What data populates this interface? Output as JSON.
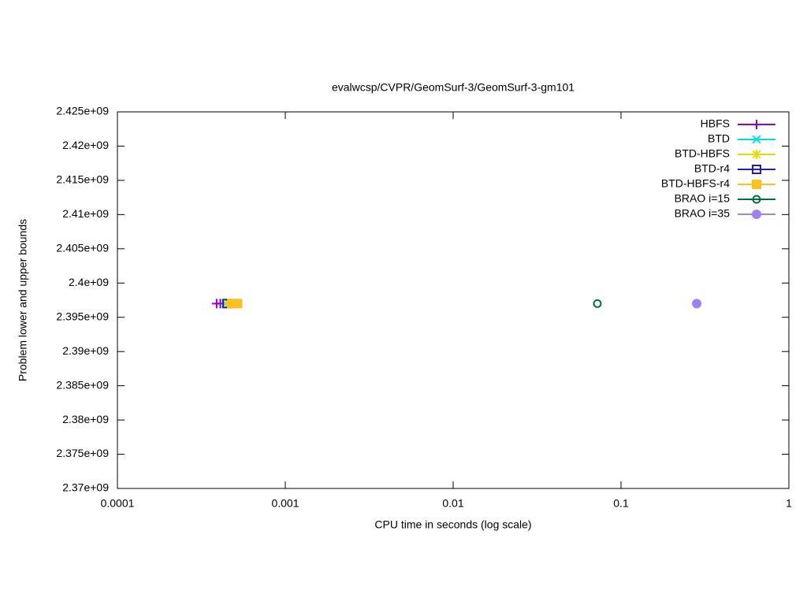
{
  "chart_data": {
    "type": "scatter",
    "title": "evalwcsp/CVPR/GeomSurf-3/GeomSurf-3-gm101",
    "x_label": "CPU time in seconds (log scale)",
    "y_label": "Problem lower and upper bounds",
    "x_scale": "log",
    "xlim": [
      0.0001,
      1
    ],
    "xticks": [
      0.0001,
      0.001,
      0.01,
      0.1,
      1
    ],
    "ylim": [
      2370000000,
      2425000000
    ],
    "yticks": [
      {
        "value": 2370000000,
        "label": "2.37e+09"
      },
      {
        "value": 2375000000,
        "label": "2.375e+09"
      },
      {
        "value": 2380000000,
        "label": "2.38e+09"
      },
      {
        "value": 2385000000,
        "label": "2.385e+09"
      },
      {
        "value": 2390000000,
        "label": "2.39e+09"
      },
      {
        "value": 2395000000,
        "label": "2.395e+09"
      },
      {
        "value": 2400000000,
        "label": "2.4e+09"
      },
      {
        "value": 2405000000,
        "label": "2.405e+09"
      },
      {
        "value": 2410000000,
        "label": "2.41e+09"
      },
      {
        "value": 2415000000,
        "label": "2.415e+09"
      },
      {
        "value": 2420000000,
        "label": "2.42e+09"
      },
      {
        "value": 2425000000,
        "label": "2.425e+09"
      }
    ],
    "legend": "top-right",
    "series": [
      {
        "name": "HBFS",
        "color": "#9400d3",
        "marker": "plus",
        "x": [
          0.00039,
          0.00041
        ],
        "values": [
          2397000000,
          2397000000
        ]
      },
      {
        "name": "BTD",
        "color": "#00e0e0",
        "marker": "cross",
        "x": [
          0.00044
        ],
        "values": [
          2397000000
        ]
      },
      {
        "name": "BTD-HBFS",
        "color": "#e0e000",
        "marker": "star",
        "x": [
          0.00046
        ],
        "values": [
          2397000000
        ]
      },
      {
        "name": "BTD-r4",
        "color": "#2020b0",
        "marker": "open-square",
        "x": [
          0.00045
        ],
        "values": [
          2397000000
        ]
      },
      {
        "name": "BTD-HBFS-r4",
        "color": "#ffc020",
        "marker": "filled-square",
        "x": [
          0.00048,
          0.00052
        ],
        "values": [
          2397000000,
          2397000000
        ]
      },
      {
        "name": "BRAO i=15",
        "color": "#007040",
        "marker": "open-circle",
        "x": [
          0.0723
        ],
        "values": [
          2397000000
        ]
      },
      {
        "name": "BRAO i=35",
        "color": "#a080f0",
        "marker": "filled-circle",
        "x": [
          0.2825
        ],
        "values": [
          2397000000
        ]
      }
    ]
  }
}
